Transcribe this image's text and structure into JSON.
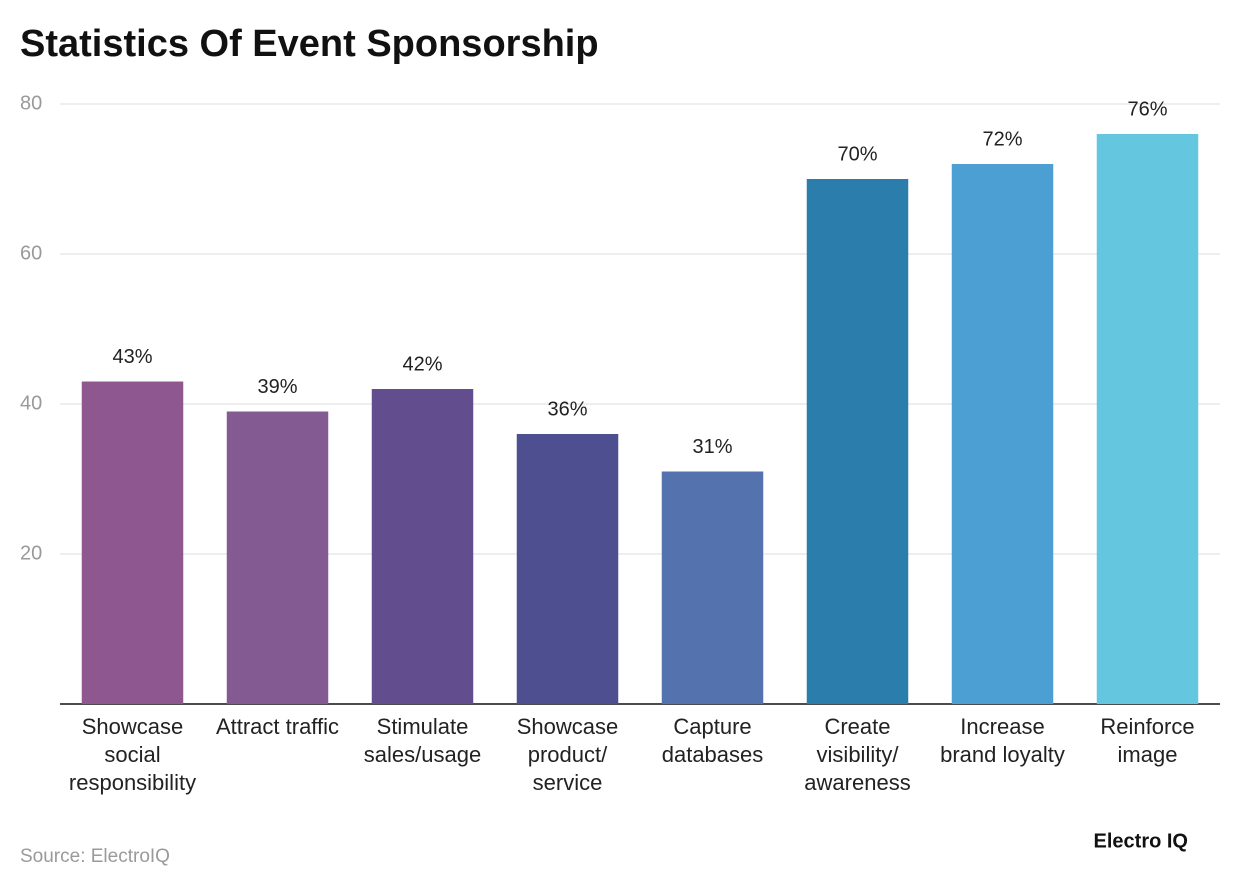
{
  "chart_data": {
    "type": "bar",
    "title": "Statistics Of Event Sponsorship",
    "categories": [
      "Showcase social responsibility",
      "Attract traffic",
      "Stimulate sales/usage",
      "Showcase product/ service",
      "Capture databases",
      "Create visibility/ awareness",
      "Increase brand loyalty",
      "Reinforce image"
    ],
    "values": [
      43,
      39,
      42,
      36,
      31,
      70,
      72,
      76
    ],
    "value_labels": [
      "43%",
      "39%",
      "42%",
      "36%",
      "31%",
      "70%",
      "72%",
      "76%"
    ],
    "colors": [
      "#8f578f",
      "#845a92",
      "#624e8e",
      "#4e4f90",
      "#5473ae",
      "#2b7dab",
      "#4c9fd2",
      "#65c6e0"
    ],
    "ylim": [
      0,
      80
    ],
    "yticks": [
      20,
      40,
      60,
      80
    ],
    "grid": true,
    "source": "Source: ElectroIQ",
    "brand": "Electro IQ"
  }
}
